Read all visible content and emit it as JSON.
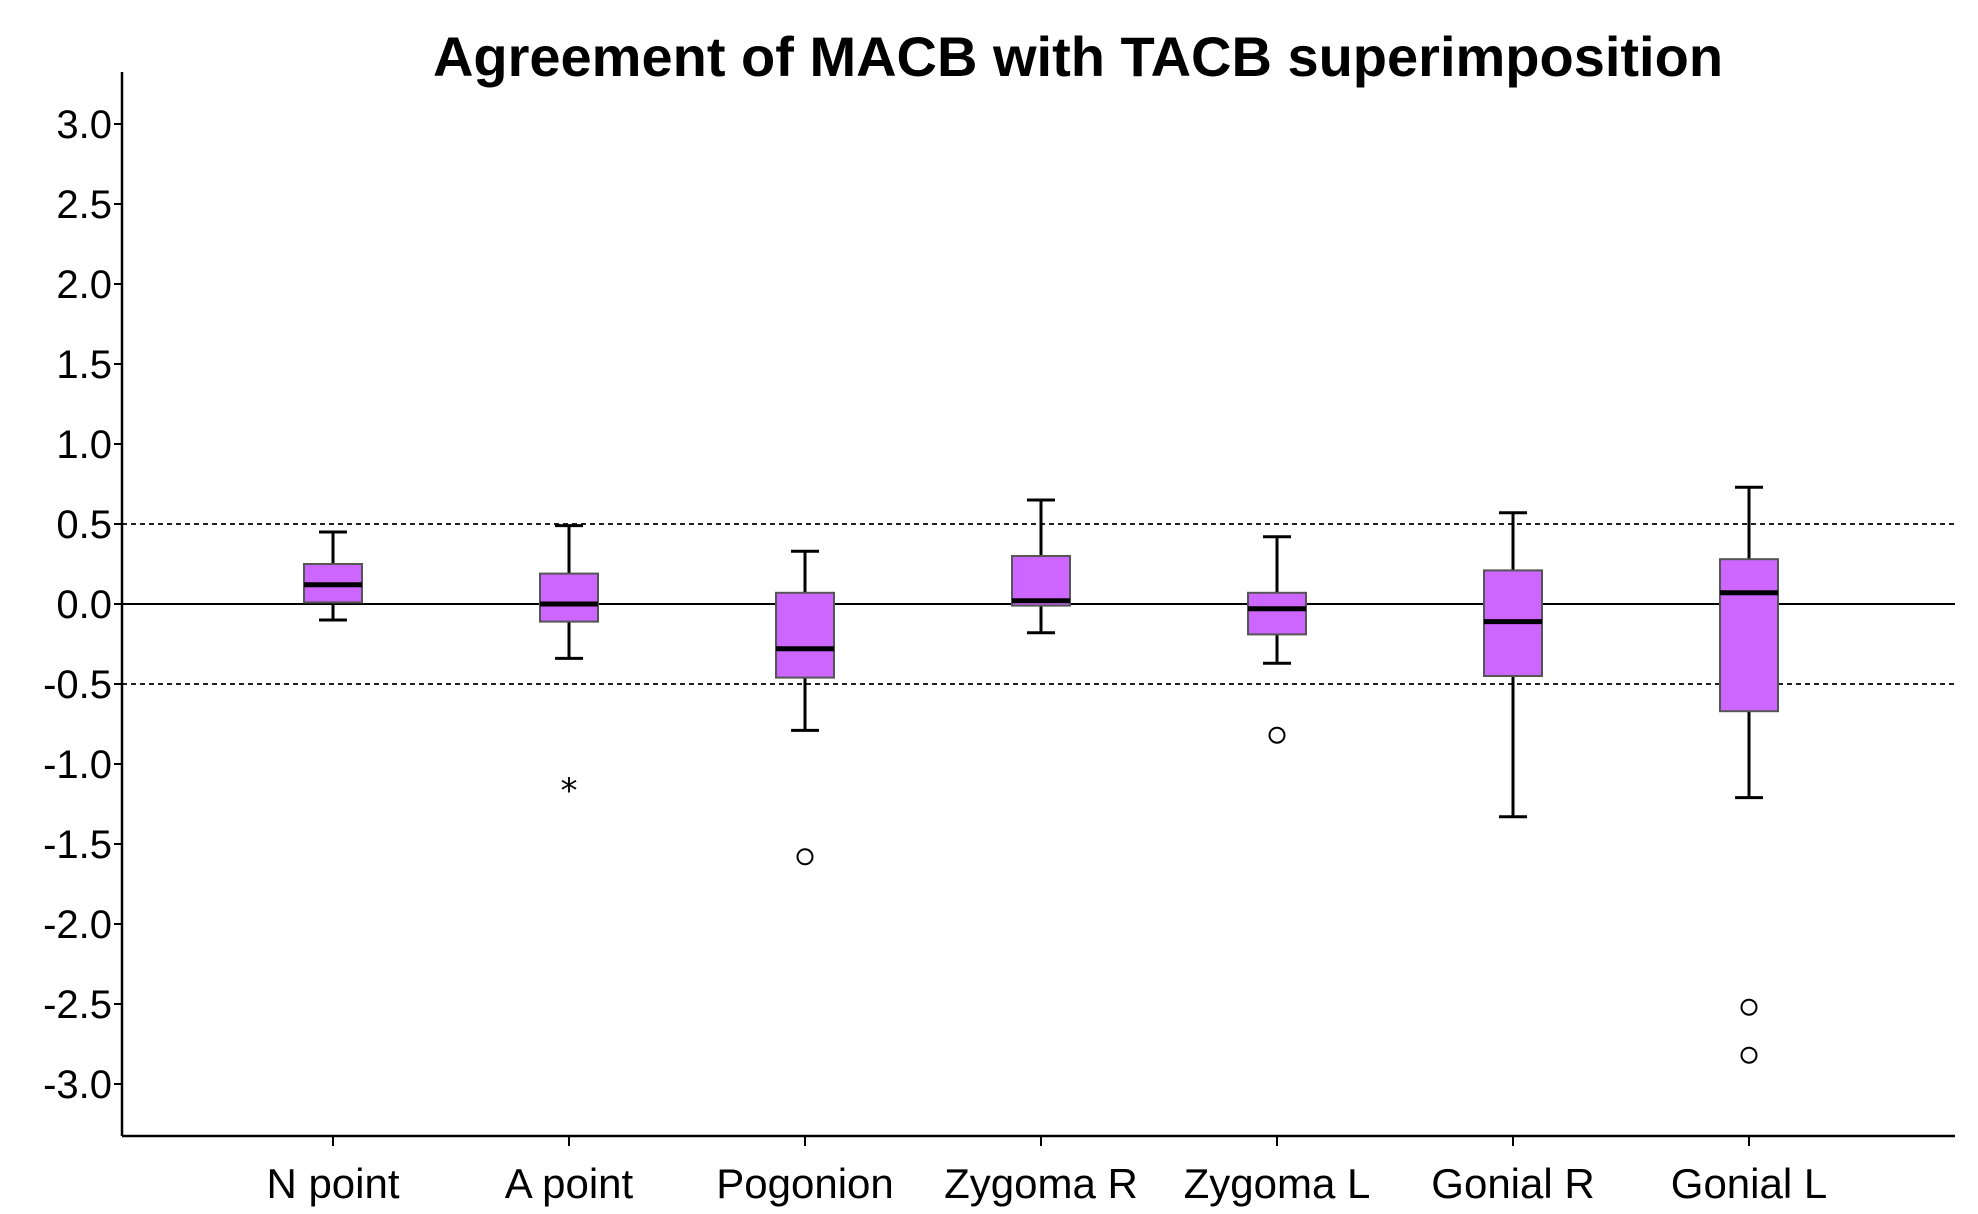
{
  "chart_data": {
    "type": "boxplot",
    "title": "Agreement of MACB with TACB superimposition",
    "xlabel": "",
    "ylabel": "",
    "ylim": [
      -3.3,
      3.3
    ],
    "yticks": [
      3.0,
      2.5,
      2.0,
      1.5,
      1.0,
      0.5,
      0.0,
      -0.5,
      -1.0,
      -1.5,
      -2.0,
      -2.5,
      -3.0
    ],
    "ytick_labels": [
      "3.0",
      "2.5",
      "2.0",
      "1.5",
      "1.0",
      "0.5",
      "0.0",
      "-0.5",
      "-1.0",
      "-1.5",
      "-2.0",
      "-2.5",
      "-3.0"
    ],
    "categories": [
      "N point",
      "A point",
      "Pogonion",
      "Zygoma R",
      "Zygoma L",
      "Gonial R",
      "Gonial L"
    ],
    "reference_lines": [
      {
        "value": 0.0,
        "style": "solid"
      },
      {
        "value": 0.5,
        "style": "dotted"
      },
      {
        "value": -0.5,
        "style": "dotted"
      }
    ],
    "box_color": "#CC66FF",
    "grid": false,
    "boxes": [
      {
        "name": "N point",
        "whisker_low": -0.1,
        "q1": 0.01,
        "median": 0.12,
        "q3": 0.25,
        "whisker_high": 0.45,
        "outliers": [],
        "extremes": []
      },
      {
        "name": "A point",
        "whisker_low": -0.34,
        "q1": -0.11,
        "median": 0.0,
        "q3": 0.19,
        "whisker_high": 0.49,
        "outliers": [],
        "extremes": [
          -1.15
        ]
      },
      {
        "name": "Pogonion",
        "whisker_low": -0.79,
        "q1": -0.46,
        "median": -0.28,
        "q3": 0.07,
        "whisker_high": 0.33,
        "outliers": [
          -1.58
        ],
        "extremes": []
      },
      {
        "name": "Zygoma R",
        "whisker_low": -0.18,
        "q1": -0.01,
        "median": 0.02,
        "q3": 0.3,
        "whisker_high": 0.65,
        "outliers": [],
        "extremes": []
      },
      {
        "name": "Zygoma L",
        "whisker_low": -0.37,
        "q1": -0.19,
        "median": -0.03,
        "q3": 0.07,
        "whisker_high": 0.42,
        "outliers": [
          -0.82
        ],
        "extremes": []
      },
      {
        "name": "Gonial R",
        "whisker_low": -1.33,
        "q1": -0.45,
        "median": -0.11,
        "q3": 0.21,
        "whisker_high": 0.57,
        "outliers": [],
        "extremes": []
      },
      {
        "name": "Gonial L",
        "whisker_low": -1.21,
        "q1": -0.67,
        "median": 0.07,
        "q3": 0.28,
        "whisker_high": 0.73,
        "outliers": [
          -2.52,
          -2.82
        ],
        "extremes": []
      }
    ]
  }
}
